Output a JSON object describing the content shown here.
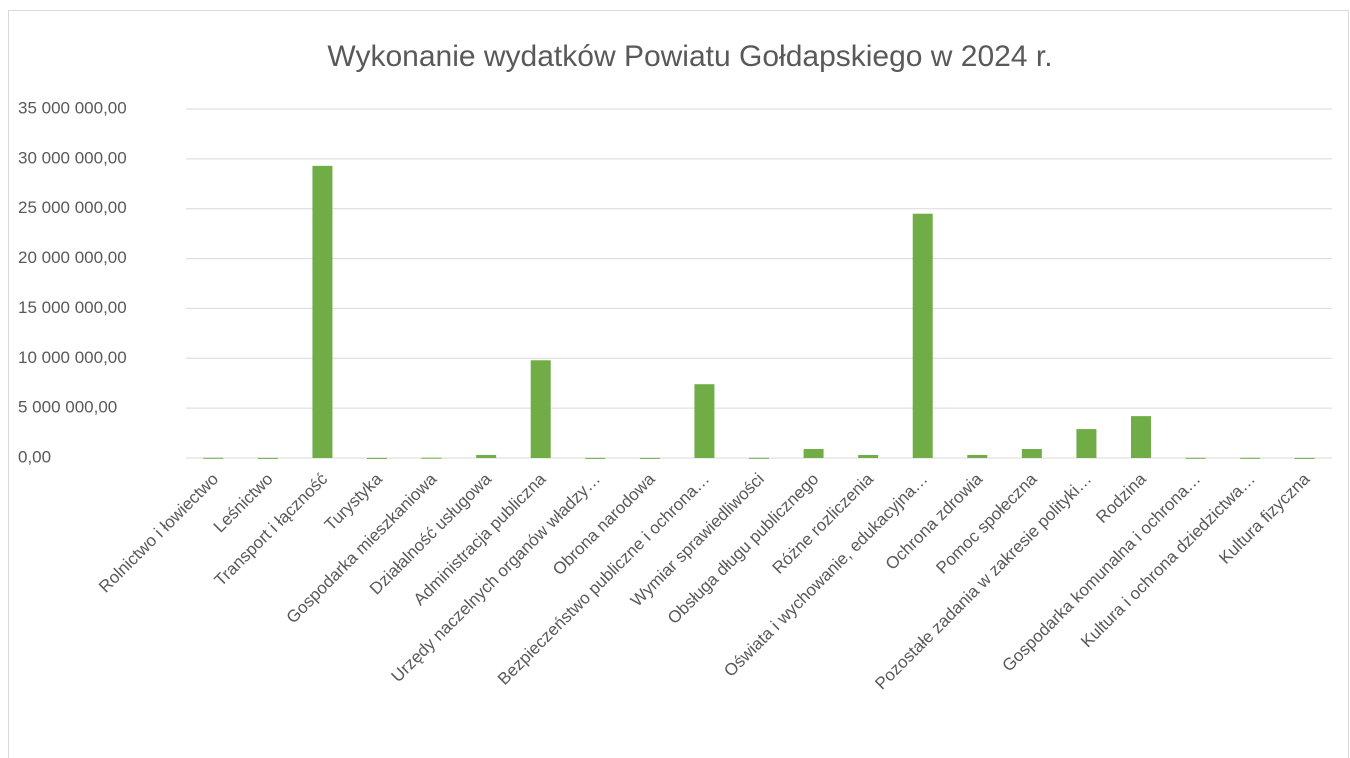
{
  "chart_data": {
    "type": "bar",
    "title": "Wykonanie wydatków Powiatu Gołdapskiego w 2024 r.",
    "categories": [
      "Rolnictwo i łowiectwo",
      "Leśnictwo",
      "Transport i łączność",
      "Turystyka",
      "Gospodarka mieszkaniowa",
      "Działalność usługowa",
      "Administracja publiczna",
      "Urzędy naczelnych organów władzy…",
      "Obrona narodowa",
      "Bezpieczeństwo publiczne i ochrona…",
      "Wymiar sprawiedliwości",
      "Obsługa długu publicznego",
      "Różne rozliczenia",
      "Oświata i wychowanie, edukacyjna…",
      "Ochrona zdrowia",
      "Pomoc społeczna",
      "Pozostałe zadania w zakresie polityki…",
      "Rodzina",
      "Gospodarka komunalna i ochrona…",
      "Kultura i ochrona dziedzictwa…",
      "Kultura fizyczna"
    ],
    "values": [
      20000,
      10000,
      29300000,
      5000,
      30000,
      300000,
      9800000,
      10000,
      10000,
      7400000,
      20000,
      900000,
      300000,
      24500000,
      300000,
      900000,
      2900000,
      4200000,
      20000,
      20000,
      10000
    ],
    "color": "#70ad47",
    "ylim": [
      0,
      35000000
    ],
    "yticks": [
      {
        "value": 0,
        "label": "0,00"
      },
      {
        "value": 5000000,
        "label": "5 000 000,00"
      },
      {
        "value": 10000000,
        "label": "10 000 000,00"
      },
      {
        "value": 15000000,
        "label": "15 000 000,00"
      },
      {
        "value": 20000000,
        "label": "20 000 000,00"
      },
      {
        "value": 25000000,
        "label": "25 000 000,00"
      },
      {
        "value": 30000000,
        "label": "30 000 000,00"
      },
      {
        "value": 35000000,
        "label": "35 000 000,00"
      }
    ],
    "grid": true
  }
}
